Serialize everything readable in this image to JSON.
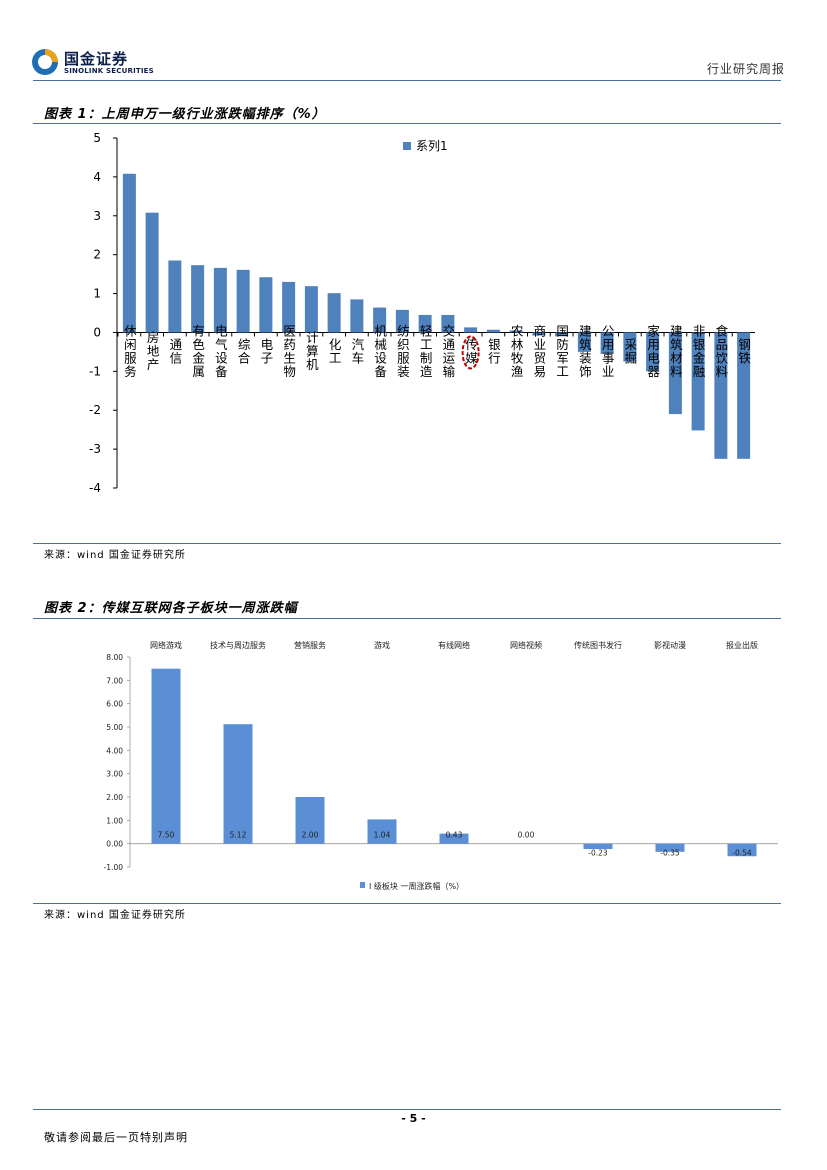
{
  "header": {
    "logo_cn": "国金证券",
    "logo_en": "SINOLINK SECURITIES",
    "report_type": "行业研究周报"
  },
  "figure1": {
    "title": "图表 1：上周申万一级行业涨跌幅排序（%）",
    "source": "来源：wind 国金证券研究所"
  },
  "figure2": {
    "title": "图表 2：传媒互联网各子板块一周涨跌幅",
    "source": "来源：wind 国金证券研究所"
  },
  "footer": {
    "page_number": "- 5 -",
    "disclaimer": "敬请参阅最后一页特别声明"
  },
  "colors": {
    "bar": "#4f81bd",
    "bar2": "#5b8fd5",
    "rule": "#4a6f9a",
    "highlight": "#c00000",
    "brand": "#0d1f4c"
  },
  "chart_data": [
    {
      "type": "bar",
      "title": "上周申万一级行业涨跌幅排序（%）",
      "legend": "系列1",
      "legend_position": "top-right",
      "categories": [
        "休闲服务",
        "房地产",
        "通信",
        "有色金属",
        "电气设备",
        "综合",
        "电子",
        "医药生物",
        "计算机",
        "化工",
        "汽车",
        "机械设备",
        "纺织服装",
        "轻工制造",
        "交通运输",
        "传媒",
        "银行",
        "农林牧渔",
        "商业贸易",
        "国防军工",
        "建筑装饰",
        "公用事业",
        "采掘",
        "家用电器",
        "建筑材料",
        "非银金融",
        "食品饮料",
        "钢铁"
      ],
      "values": [
        4.08,
        3.08,
        1.85,
        1.73,
        1.66,
        1.61,
        1.42,
        1.3,
        1.19,
        1.01,
        0.85,
        0.64,
        0.58,
        0.45,
        0.45,
        0.13,
        0.07,
        0.05,
        -0.08,
        -0.1,
        -0.5,
        -0.55,
        -0.75,
        -1.0,
        -2.1,
        -2.52,
        -3.25,
        -3.25
      ],
      "highlight": "传媒",
      "ylim": [
        -4,
        5
      ],
      "yticks": [
        "-4",
        "-3",
        "-2",
        "-1",
        "0",
        "1",
        "2",
        "3",
        "4",
        "5"
      ]
    },
    {
      "type": "bar",
      "title": "传媒互联网各子板块一周涨跌幅",
      "legend": "I 级板块 一周涨跌幅（%）",
      "legend_position": "bottom",
      "categories": [
        "网络游戏",
        "技术与周边服务",
        "营销服务",
        "游戏",
        "有线网络",
        "网络视频",
        "传统图书发行",
        "影视动漫",
        "报业出版"
      ],
      "values": [
        7.5,
        5.12,
        2.0,
        1.04,
        0.43,
        0.0,
        -0.23,
        -0.35,
        -0.54
      ],
      "value_labels": [
        "7.50",
        "5.12",
        "2.00",
        "1.04",
        "0.43",
        "0.00",
        "-0.23",
        "-0.35",
        "-0.54"
      ],
      "ylim": [
        -1,
        8
      ],
      "yticks": [
        "-1.00",
        "0.00",
        "1.00",
        "2.00",
        "3.00",
        "4.00",
        "5.00",
        "6.00",
        "7.00",
        "8.00"
      ]
    }
  ]
}
